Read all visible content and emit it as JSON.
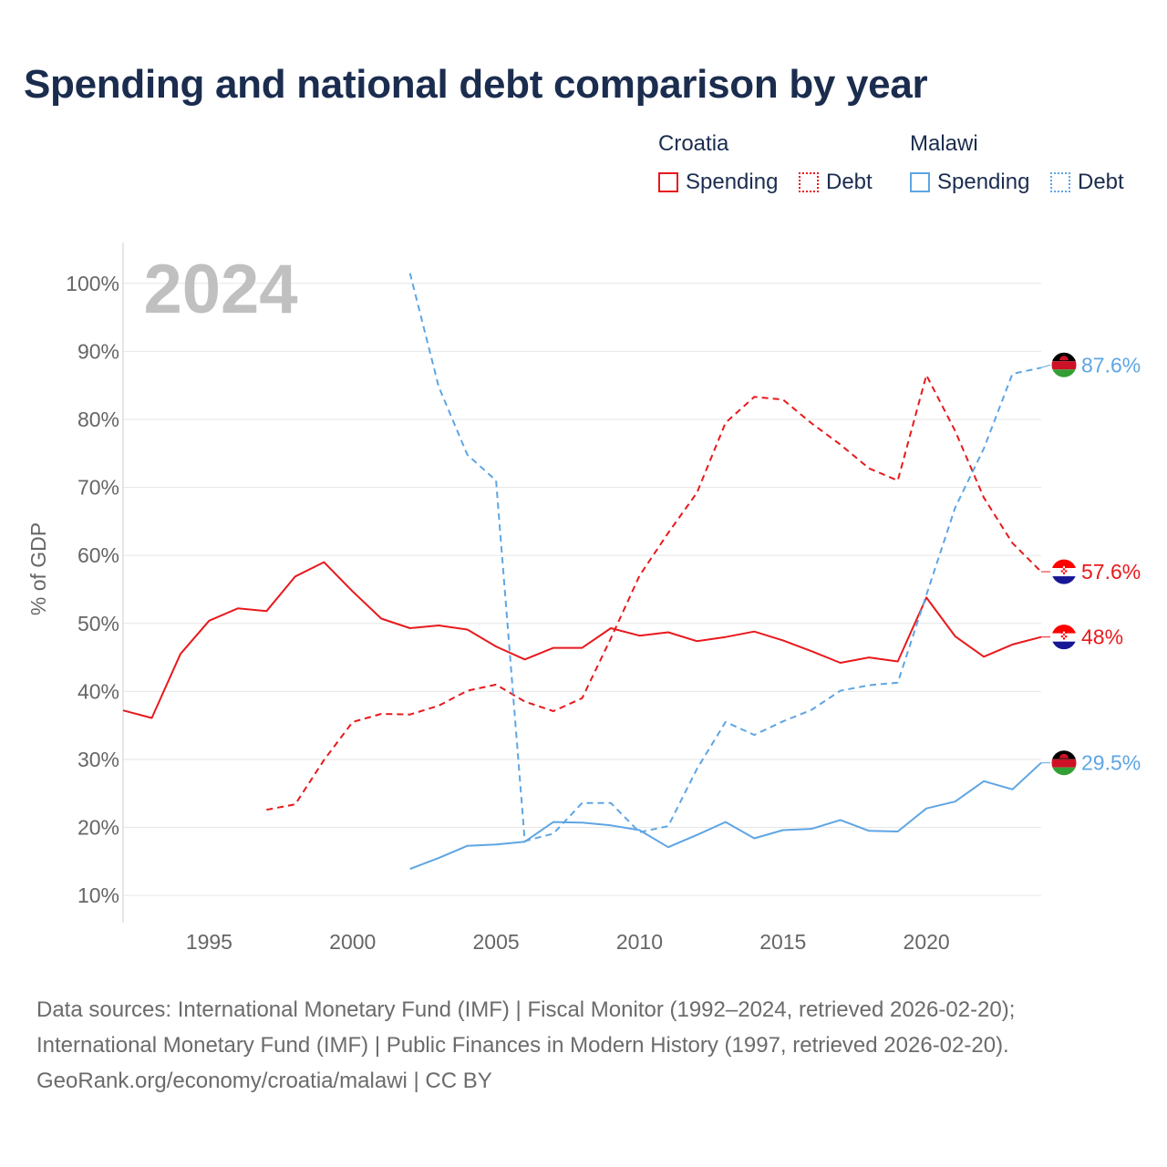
{
  "title": "Spending and national debt comparison by year",
  "legend": {
    "croatia": {
      "label": "Croatia",
      "spending": "Spending",
      "debt": "Debt"
    },
    "malawi": {
      "label": "Malawi",
      "spending": "Spending",
      "debt": "Debt"
    }
  },
  "colors": {
    "croatia": "#e8191c",
    "malawi": "#5ea5e4",
    "grid": "#e6e6e6",
    "watermark": "#c0c0c0"
  },
  "chart_data": {
    "type": "line",
    "year_watermark": "2024",
    "ylabel": "% of GDP",
    "xlim": [
      1992,
      2024
    ],
    "ylim": [
      6,
      106
    ],
    "xticks": [
      1995,
      2000,
      2005,
      2010,
      2015,
      2020
    ],
    "yticks": [
      {
        "value": 10,
        "label": "10%"
      },
      {
        "value": 20,
        "label": "20%"
      },
      {
        "value": 30,
        "label": "30%"
      },
      {
        "value": 40,
        "label": "40%"
      },
      {
        "value": 50,
        "label": "50%"
      },
      {
        "value": 60,
        "label": "60%"
      },
      {
        "value": 70,
        "label": "70%"
      },
      {
        "value": 80,
        "label": "80%"
      },
      {
        "value": 90,
        "label": "90%"
      },
      {
        "value": 100,
        "label": "100%"
      }
    ],
    "series": [
      {
        "name": "Croatia Spending",
        "country": "croatia",
        "style": "solid",
        "end_label": "48%",
        "x": [
          1992,
          1993,
          1994,
          1995,
          1996,
          1997,
          1998,
          1999,
          2000,
          2001,
          2002,
          2003,
          2004,
          2005,
          2006,
          2007,
          2008,
          2009,
          2010,
          2011,
          2012,
          2013,
          2014,
          2015,
          2016,
          2017,
          2018,
          2019,
          2020,
          2021,
          2022,
          2023,
          2024
        ],
        "y": [
          37.2,
          36.1,
          45.5,
          50.4,
          52.2,
          51.8,
          56.9,
          59.0,
          54.7,
          50.7,
          49.3,
          49.7,
          49.1,
          46.6,
          44.7,
          46.4,
          46.4,
          49.3,
          48.2,
          48.7,
          47.4,
          48.0,
          48.8,
          47.5,
          45.9,
          44.2,
          45.0,
          44.4,
          53.8,
          48.1,
          45.1,
          46.9,
          48.0
        ]
      },
      {
        "name": "Croatia Debt",
        "country": "croatia",
        "style": "dashed",
        "end_label": "57.6%",
        "x": [
          1997,
          1998,
          1999,
          2000,
          2001,
          2002,
          2003,
          2004,
          2005,
          2006,
          2007,
          2008,
          2009,
          2010,
          2011,
          2012,
          2013,
          2014,
          2015,
          2016,
          2017,
          2018,
          2019,
          2020,
          2021,
          2022,
          2023,
          2024
        ],
        "y": [
          22.6,
          23.4,
          29.9,
          35.5,
          36.7,
          36.6,
          37.9,
          40.1,
          41.0,
          38.5,
          37.1,
          39.0,
          47.8,
          57.0,
          63.3,
          69.2,
          79.5,
          83.3,
          82.9,
          79.4,
          76.3,
          72.8,
          71.0,
          86.5,
          78.3,
          68.5,
          61.8,
          57.6
        ]
      },
      {
        "name": "Malawi Spending",
        "country": "malawi",
        "style": "solid",
        "end_label": "29.5%",
        "x": [
          2002,
          2003,
          2004,
          2005,
          2006,
          2007,
          2008,
          2009,
          2010,
          2011,
          2012,
          2013,
          2014,
          2015,
          2016,
          2017,
          2018,
          2019,
          2020,
          2021,
          2022,
          2023,
          2024
        ],
        "y": [
          13.9,
          15.5,
          17.3,
          17.5,
          17.9,
          20.8,
          20.7,
          20.3,
          19.6,
          17.1,
          18.9,
          20.8,
          18.4,
          19.6,
          19.8,
          21.1,
          19.5,
          19.4,
          22.8,
          23.8,
          26.8,
          25.6,
          29.5
        ]
      },
      {
        "name": "Malawi Debt",
        "country": "malawi",
        "style": "dashed",
        "end_label": "87.6%",
        "x": [
          2002,
          2003,
          2004,
          2005,
          2006,
          2007,
          2008,
          2009,
          2010,
          2011,
          2012,
          2013,
          2014,
          2015,
          2016,
          2017,
          2018,
          2019,
          2020,
          2021,
          2022,
          2023,
          2024
        ],
        "y": [
          101.5,
          84.8,
          74.8,
          71.0,
          18.0,
          19.1,
          23.6,
          23.6,
          19.3,
          20.2,
          28.6,
          35.5,
          33.6,
          35.6,
          37.3,
          40.1,
          40.9,
          41.3,
          54.2,
          67.0,
          75.7,
          86.7,
          87.6
        ]
      }
    ]
  },
  "footer": {
    "line1": "Data sources: International Monetary Fund (IMF) | Fiscal Monitor (1992–2024, retrieved 2026-02-20);",
    "line2": "International Monetary Fund (IMF) | Public Finances in Modern History (1997, retrieved 2026-02-20).",
    "line3": "GeoRank.org/economy/croatia/malawi | CC BY"
  }
}
